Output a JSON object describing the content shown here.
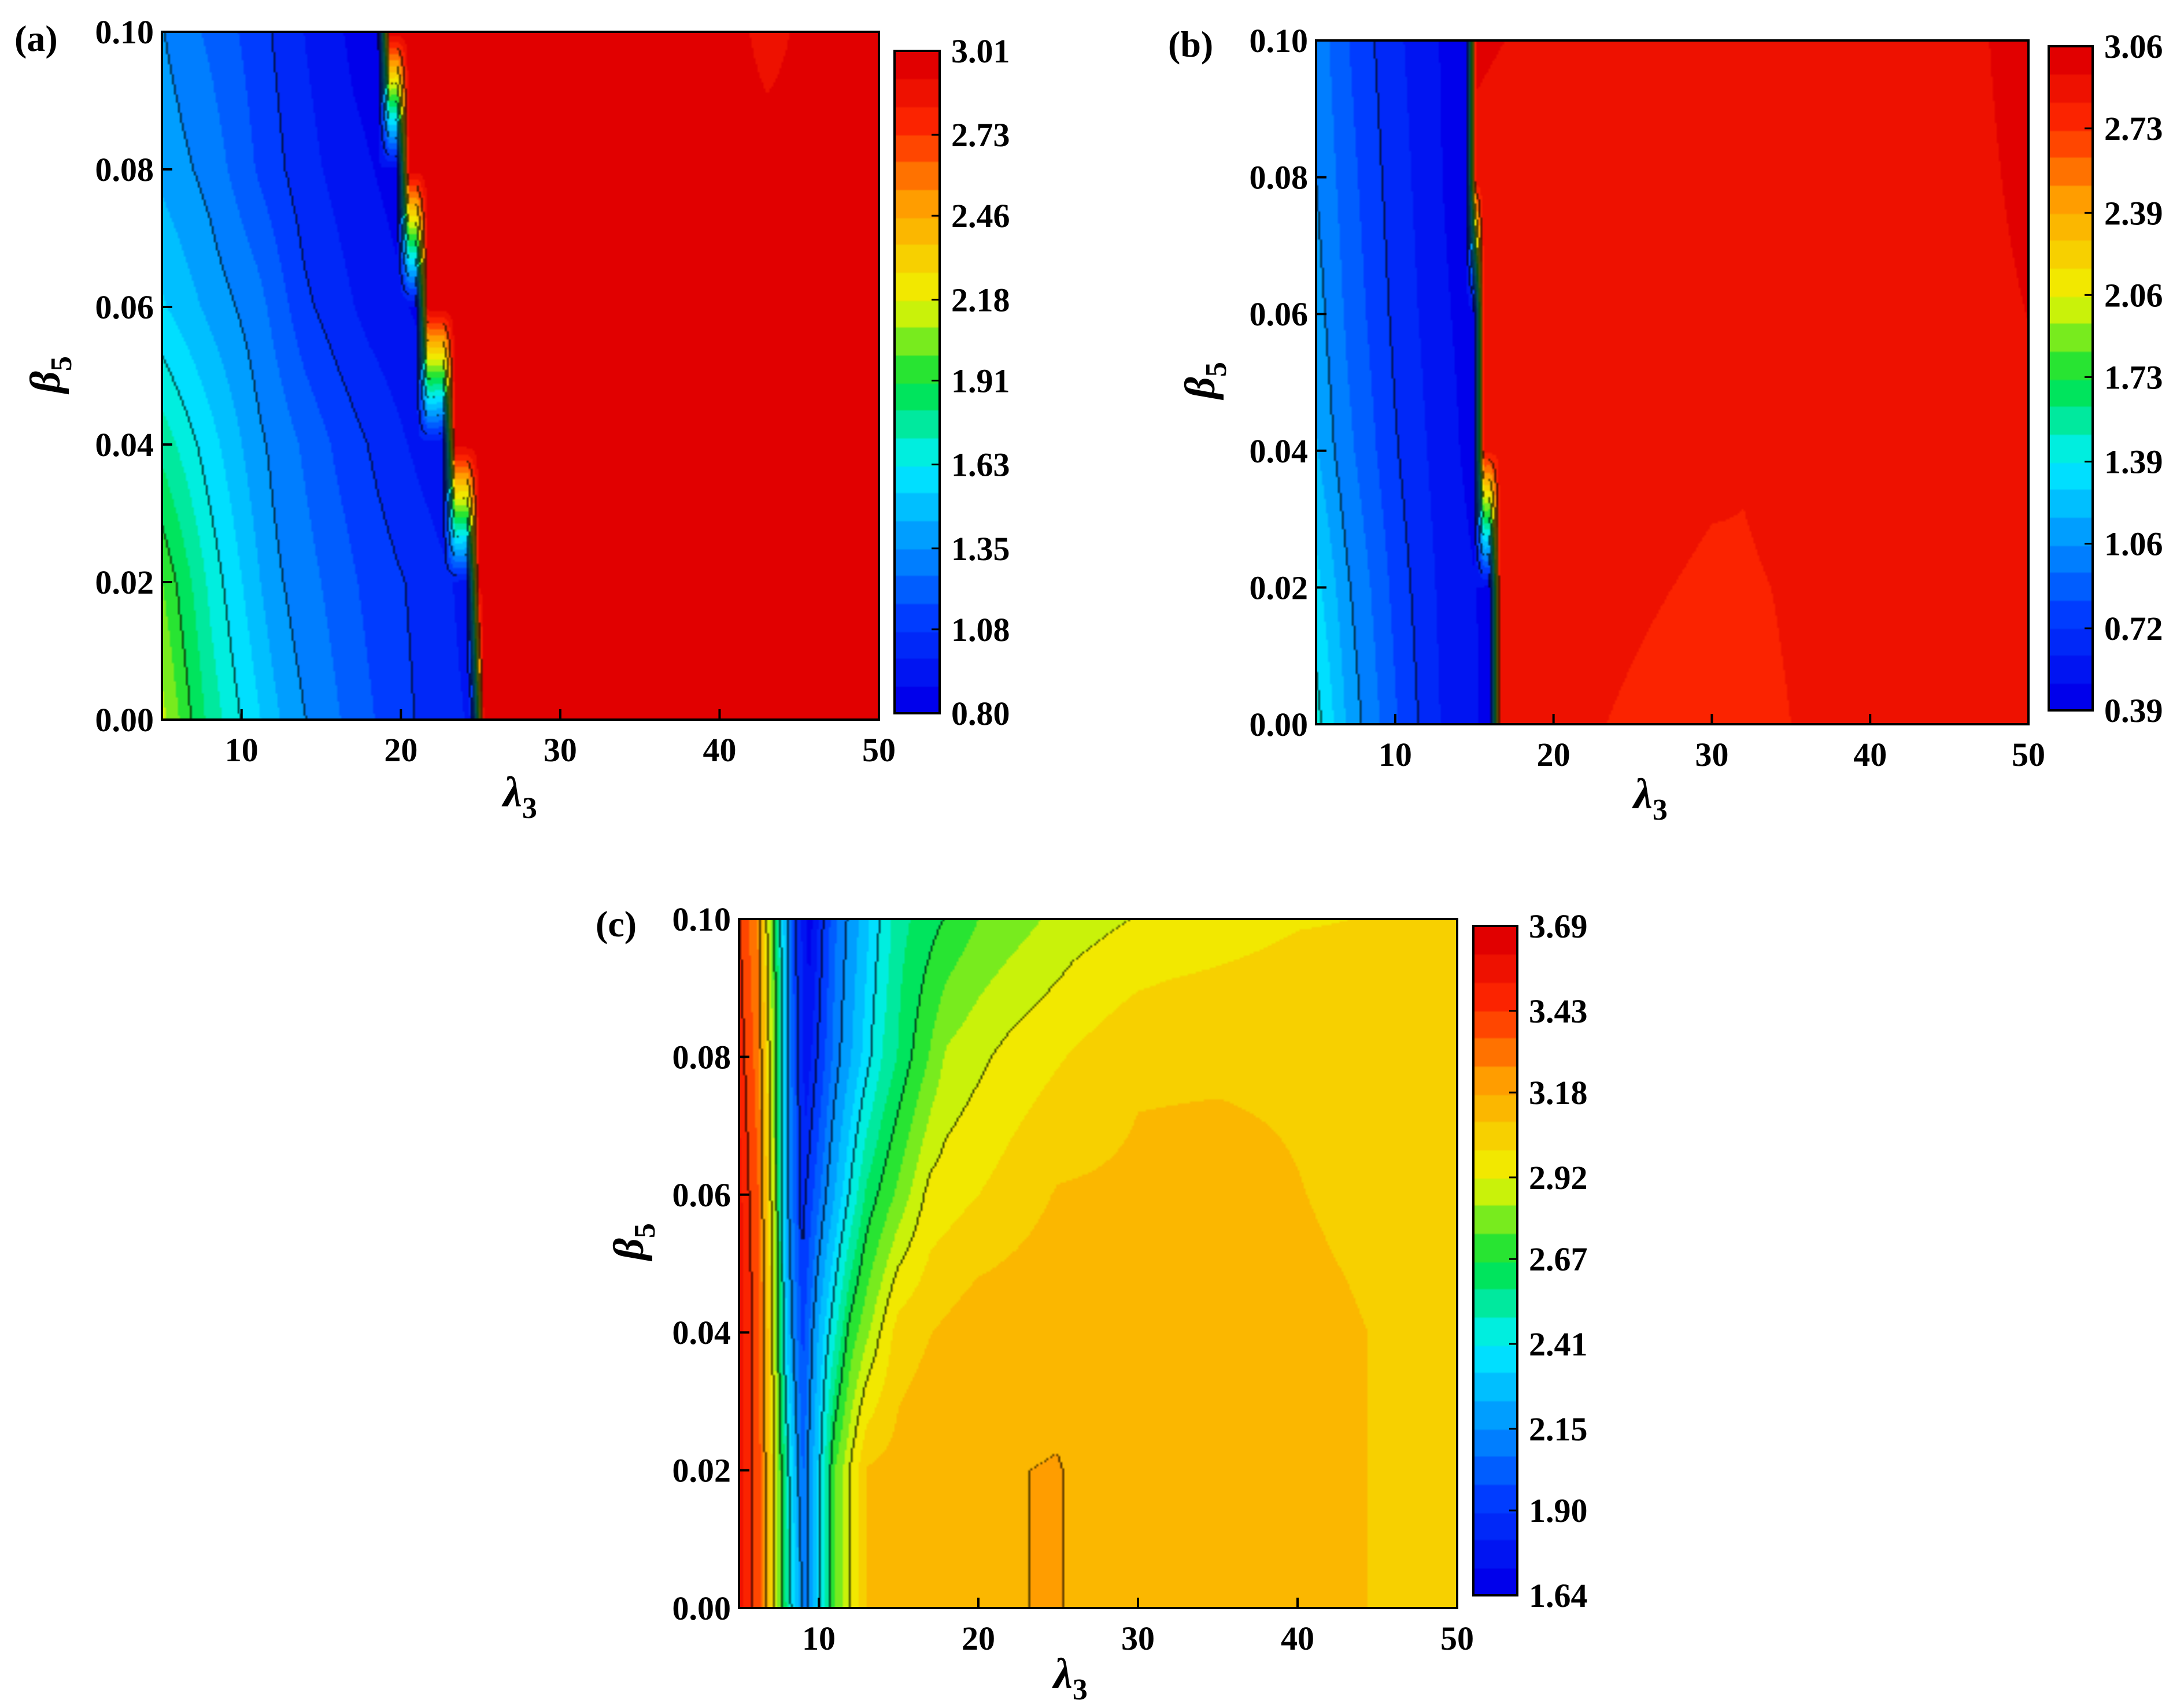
{
  "figure": {
    "background": "#ffffff"
  },
  "chart_data": [
    {
      "type": "heatmap",
      "panel_label": "(a)",
      "x_symbol": "λ",
      "x_subscript": "3",
      "y_symbol": "β",
      "y_subscript": "5",
      "x_range": [
        5,
        50
      ],
      "y_range": [
        0.0,
        0.1
      ],
      "x_ticks": [
        10,
        20,
        30,
        40,
        50
      ],
      "x_tick_labels": [
        "10",
        "20",
        "30",
        "40",
        "50"
      ],
      "y_ticks": [
        0.0,
        0.02,
        0.04,
        0.06,
        0.08,
        0.1
      ],
      "y_tick_labels": [
        "0.00",
        "0.02",
        "0.04",
        "0.06",
        "0.08",
        "0.10"
      ],
      "colorbar_ticks": [
        3.01,
        2.73,
        2.46,
        2.18,
        1.91,
        1.63,
        1.35,
        1.08,
        0.8
      ],
      "colorbar_tick_labels": [
        "3.01",
        "2.73",
        "2.46",
        "2.18",
        "1.91",
        "1.63",
        "1.35",
        "1.08",
        "0.80"
      ],
      "colorbar_range": [
        0.8,
        3.01
      ],
      "surface": {
        "y_grid": [
          0.0,
          0.02,
          0.04,
          0.06,
          0.08,
          0.1
        ],
        "profiles": [
          [
            [
              5,
              2.12
            ],
            [
              8,
              1.78
            ],
            [
              13,
              1.4
            ],
            [
              19,
              1.14
            ],
            [
              22,
              1.04
            ],
            [
              24.5,
              0.97
            ],
            [
              25.2,
              2.95
            ],
            [
              30,
              2.98
            ],
            [
              45,
              2.93
            ],
            [
              50,
              2.92
            ]
          ],
          [
            [
              5,
              2.0
            ],
            [
              8,
              1.7
            ],
            [
              12,
              1.38
            ],
            [
              18,
              1.14
            ],
            [
              22,
              1.03
            ],
            [
              24.2,
              0.95
            ],
            [
              24.9,
              2.95
            ],
            [
              30,
              2.98
            ],
            [
              45,
              2.94
            ],
            [
              50,
              2.93
            ]
          ],
          [
            [
              5,
              1.78
            ],
            [
              8,
              1.58
            ],
            [
              11,
              1.38
            ],
            [
              16,
              1.15
            ],
            [
              20,
              1.0
            ],
            [
              22.7,
              0.9
            ],
            [
              23.4,
              2.96
            ],
            [
              30,
              2.98
            ],
            [
              45,
              2.95
            ],
            [
              50,
              2.94
            ]
          ],
          [
            [
              5,
              1.55
            ],
            [
              8,
              1.42
            ],
            [
              11,
              1.3
            ],
            [
              14,
              1.1
            ],
            [
              18,
              0.95
            ],
            [
              21.0,
              0.88
            ],
            [
              21.7,
              2.97
            ],
            [
              30,
              2.98
            ],
            [
              45,
              2.95
            ],
            [
              50,
              2.95
            ]
          ],
          [
            [
              5,
              1.42
            ],
            [
              8,
              1.32
            ],
            [
              11,
              1.16
            ],
            [
              14,
              1.02
            ],
            [
              17,
              0.92
            ],
            [
              19.8,
              0.86
            ],
            [
              20.5,
              2.97
            ],
            [
              30,
              2.98
            ],
            [
              40,
              2.97
            ],
            [
              50,
              2.95
            ]
          ],
          [
            [
              5,
              1.36
            ],
            [
              8,
              1.24
            ],
            [
              11,
              1.12
            ],
            [
              14,
              0.98
            ],
            [
              17,
              0.87
            ],
            [
              18.6,
              0.84
            ],
            [
              19.3,
              2.97
            ],
            [
              30,
              2.98
            ],
            [
              40,
              2.98
            ],
            [
              43,
              2.88
            ],
            [
              46,
              2.96
            ],
            [
              50,
              2.95
            ]
          ]
        ]
      }
    },
    {
      "type": "heatmap",
      "panel_label": "(b)",
      "x_symbol": "λ",
      "x_subscript": "3",
      "y_symbol": "β",
      "y_subscript": "5",
      "x_range": [
        5,
        50
      ],
      "y_range": [
        0.0,
        0.1
      ],
      "x_ticks": [
        10,
        20,
        30,
        40,
        50
      ],
      "x_tick_labels": [
        "10",
        "20",
        "30",
        "40",
        "50"
      ],
      "y_ticks": [
        0.0,
        0.02,
        0.04,
        0.06,
        0.08,
        0.1
      ],
      "y_tick_labels": [
        "0.00",
        "0.02",
        "0.04",
        "0.06",
        "0.08",
        "0.10"
      ],
      "colorbar_ticks": [
        3.06,
        2.73,
        2.39,
        2.06,
        1.73,
        1.39,
        1.06,
        0.72,
        0.39
      ],
      "colorbar_tick_labels": [
        "3.06",
        "2.73",
        "2.39",
        "2.06",
        "1.73",
        "1.39",
        "1.06",
        "0.72",
        "0.39"
      ],
      "colorbar_range": [
        0.39,
        3.06
      ],
      "surface": {
        "y_grid": [
          0.0,
          0.02,
          0.04,
          0.06,
          0.08,
          0.1
        ],
        "profiles": [
          [
            [
              5,
              1.45
            ],
            [
              7,
              1.15
            ],
            [
              10,
              0.85
            ],
            [
              13,
              0.6
            ],
            [
              16.0,
              0.47
            ],
            [
              16.6,
              2.85
            ],
            [
              20,
              2.85
            ],
            [
              28,
              2.82
            ],
            [
              36,
              2.84
            ],
            [
              50,
              2.9
            ]
          ],
          [
            [
              5,
              1.32
            ],
            [
              7,
              1.08
            ],
            [
              10,
              0.8
            ],
            [
              13,
              0.58
            ],
            [
              16.0,
              0.47
            ],
            [
              16.6,
              2.86
            ],
            [
              20,
              2.86
            ],
            [
              30,
              2.83
            ],
            [
              40,
              2.85
            ],
            [
              50,
              2.92
            ]
          ],
          [
            [
              5,
              1.18
            ],
            [
              7,
              0.98
            ],
            [
              10,
              0.74
            ],
            [
              13,
              0.55
            ],
            [
              15.0,
              0.46
            ],
            [
              15.6,
              2.88
            ],
            [
              22,
              2.87
            ],
            [
              32,
              2.84
            ],
            [
              42,
              2.87
            ],
            [
              50,
              2.93
            ]
          ],
          [
            [
              5,
              1.12
            ],
            [
              7,
              0.92
            ],
            [
              10,
              0.7
            ],
            [
              13,
              0.52
            ],
            [
              15.0,
              0.45
            ],
            [
              15.6,
              2.9
            ],
            [
              22,
              2.88
            ],
            [
              34,
              2.86
            ],
            [
              44,
              2.9
            ],
            [
              50,
              2.95
            ]
          ],
          [
            [
              5,
              1.06
            ],
            [
              7,
              0.88
            ],
            [
              10,
              0.67
            ],
            [
              13,
              0.5
            ],
            [
              14.5,
              0.44
            ],
            [
              15.1,
              2.93
            ],
            [
              20,
              2.9
            ],
            [
              36,
              2.87
            ],
            [
              46,
              2.92
            ],
            [
              50,
              2.97
            ]
          ],
          [
            [
              5,
              1.02
            ],
            [
              7,
              0.84
            ],
            [
              10,
              0.64
            ],
            [
              13,
              0.49
            ],
            [
              14.5,
              0.43
            ],
            [
              15.1,
              2.96
            ],
            [
              20,
              2.93
            ],
            [
              38,
              2.88
            ],
            [
              47,
              2.94
            ],
            [
              50,
              2.99
            ]
          ]
        ]
      }
    },
    {
      "type": "heatmap",
      "panel_label": "(c)",
      "x_symbol": "λ",
      "x_subscript": "3",
      "y_symbol": "β",
      "y_subscript": "5",
      "x_range": [
        5,
        50
      ],
      "y_range": [
        0.0,
        0.1
      ],
      "x_ticks": [
        10,
        20,
        30,
        40,
        50
      ],
      "x_tick_labels": [
        "10",
        "20",
        "30",
        "40",
        "50"
      ],
      "y_ticks": [
        0.0,
        0.02,
        0.04,
        0.06,
        0.08,
        0.1
      ],
      "y_tick_labels": [
        "0.00",
        "0.02",
        "0.04",
        "0.06",
        "0.08",
        "0.10"
      ],
      "colorbar_ticks": [
        3.69,
        3.43,
        3.18,
        2.92,
        2.67,
        2.41,
        2.15,
        1.9,
        1.64
      ],
      "colorbar_tick_labels": [
        "3.69",
        "3.43",
        "3.18",
        "2.92",
        "2.67",
        "2.41",
        "2.15",
        "1.90",
        "1.64"
      ],
      "colorbar_range": [
        1.64,
        3.69
      ],
      "surface": {
        "y_grid": [
          0.0,
          0.02,
          0.04,
          0.06,
          0.08,
          0.1
        ],
        "profiles": [
          [
            [
              5,
              3.55
            ],
            [
              6.2,
              3.4
            ],
            [
              7.2,
              2.95
            ],
            [
              8.2,
              2.45
            ],
            [
              9.2,
              2.1
            ],
            [
              10,
              2.35
            ],
            [
              11,
              2.75
            ],
            [
              13,
              3.1
            ],
            [
              18,
              3.17
            ],
            [
              25,
              3.18
            ],
            [
              29,
              3.15
            ],
            [
              33,
              3.12
            ],
            [
              43,
              3.1
            ],
            [
              50,
              3.06
            ]
          ],
          [
            [
              5,
              3.55
            ],
            [
              6.2,
              3.4
            ],
            [
              7.2,
              2.95
            ],
            [
              8.2,
              2.4
            ],
            [
              9.0,
              2.05
            ],
            [
              10,
              2.35
            ],
            [
              11,
              2.75
            ],
            [
              13,
              3.1
            ],
            [
              18,
              3.17
            ],
            [
              25,
              3.18
            ],
            [
              29,
              3.15
            ],
            [
              34,
              3.12
            ],
            [
              43,
              3.1
            ],
            [
              50,
              3.06
            ]
          ],
          [
            [
              5,
              3.55
            ],
            [
              6.2,
              3.4
            ],
            [
              7.2,
              2.9
            ],
            [
              8.0,
              2.3
            ],
            [
              9.0,
              1.95
            ],
            [
              10,
              2.25
            ],
            [
              12,
              2.7
            ],
            [
              15,
              3.05
            ],
            [
              20,
              3.15
            ],
            [
              25,
              3.16
            ],
            [
              35,
              3.13
            ],
            [
              43,
              3.1
            ],
            [
              50,
              3.06
            ]
          ],
          [
            [
              5,
              3.55
            ],
            [
              6.2,
              3.35
            ],
            [
              7.2,
              2.85
            ],
            [
              8.0,
              2.2
            ],
            [
              9.0,
              1.85
            ],
            [
              10.5,
              2.15
            ],
            [
              13,
              2.6
            ],
            [
              17,
              2.95
            ],
            [
              25,
              3.1
            ],
            [
              35,
              3.12
            ],
            [
              43,
              3.08
            ],
            [
              50,
              3.05
            ]
          ],
          [
            [
              5,
              3.5
            ],
            [
              6.2,
              3.3
            ],
            [
              7.2,
              2.8
            ],
            [
              8.2,
              2.1
            ],
            [
              9.2,
              1.75
            ],
            [
              11,
              2.1
            ],
            [
              14,
              2.5
            ],
            [
              18,
              2.85
            ],
            [
              22,
              2.95
            ],
            [
              30,
              3.08
            ],
            [
              40,
              3.08
            ],
            [
              50,
              3.04
            ]
          ],
          [
            [
              5,
              3.45
            ],
            [
              6.2,
              3.25
            ],
            [
              7.2,
              2.7
            ],
            [
              8.4,
              1.95
            ],
            [
              9.4,
              1.68
            ],
            [
              11,
              2.05
            ],
            [
              15,
              2.55
            ],
            [
              20,
              2.75
            ],
            [
              26,
              2.88
            ],
            [
              32,
              2.95
            ],
            [
              40,
              3.0
            ],
            [
              50,
              3.02
            ]
          ]
        ]
      }
    }
  ]
}
